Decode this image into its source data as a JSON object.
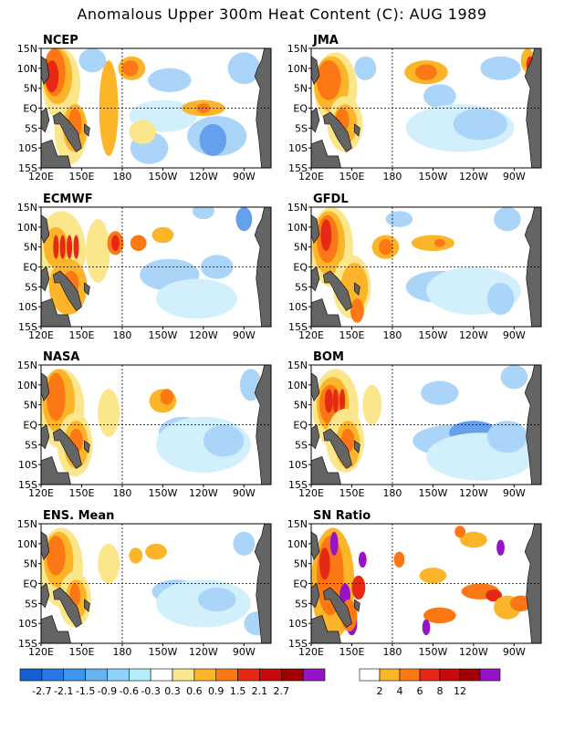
{
  "title": "Anomalous Upper 300m Heat Content (C): AUG 1989",
  "panels": [
    {
      "name": "NCEP"
    },
    {
      "name": "JMA"
    },
    {
      "name": "ECMWF"
    },
    {
      "name": "GFDL"
    },
    {
      "name": "NASA"
    },
    {
      "name": "BOM"
    },
    {
      "name": "ENS. Mean"
    },
    {
      "name": "SN Ratio"
    }
  ],
  "lat_labels": [
    "15N",
    "10N",
    "5N",
    "EQ",
    "5S",
    "10S",
    "15S"
  ],
  "lon_labels": [
    "120E",
    "150E",
    "180",
    "150W",
    "120W",
    "90W"
  ],
  "colors": {
    "ocean": "#ffffff",
    "land": "#646464",
    "neg_strong": "#1e60d6",
    "neg_mid": "#64a0ec",
    "neg_light": "#aad4f8",
    "neg_faint": "#d2f0fc",
    "pos_faint": "#fce68c",
    "pos_light": "#fcb428",
    "pos_mid": "#fc7814",
    "pos_strong": "#e62814",
    "pos_dark": "#a00a0a",
    "purple": "#9614c8"
  },
  "colorbar_left": {
    "labels": [
      "-2.7",
      "-2.1",
      "-1.5",
      "-0.9",
      "-0.6",
      "-0.3",
      "0.3",
      "0.6",
      "0.9",
      "1.5",
      "2.1",
      "2.7"
    ],
    "colors": [
      "#1460d2",
      "#2878e6",
      "#3c96ec",
      "#64b4f4",
      "#8cd2fa",
      "#b4ecfc",
      "#ffffff",
      "#fce68c",
      "#fcb428",
      "#fc7814",
      "#e62814",
      "#c80a0a",
      "#a00000",
      "#9614c8"
    ]
  },
  "colorbar_right": {
    "labels": [
      "2",
      "4",
      "6",
      "8",
      "12"
    ],
    "colors": [
      "#ffffff",
      "#fcb428",
      "#fc7814",
      "#e62814",
      "#c80a0a",
      "#a00000",
      "#9614c8"
    ]
  }
}
